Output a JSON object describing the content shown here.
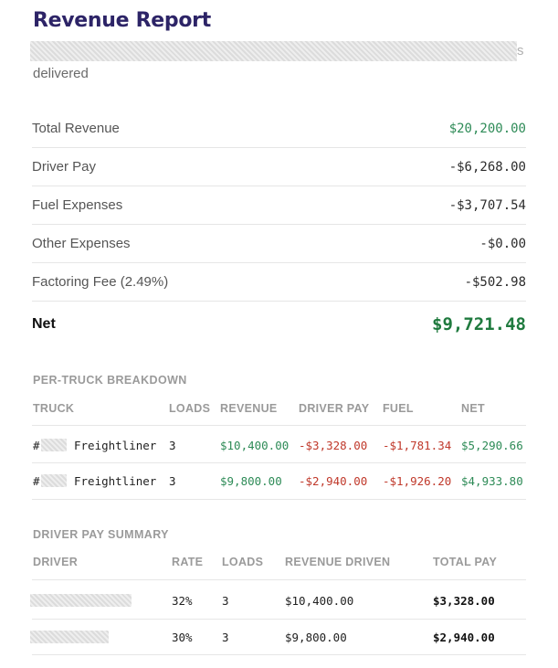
{
  "report": {
    "title": "Revenue Report",
    "subtitle_tail": "s",
    "subtitle_end": "delivered"
  },
  "summary": [
    {
      "label": "Total Revenue",
      "value": "$20,200.00"
    },
    {
      "label": "Driver Pay",
      "value": "-$6,268.00"
    },
    {
      "label": "Fuel Expenses",
      "value": "-$3,707.54"
    },
    {
      "label": "Other Expenses",
      "value": "-$0.00"
    },
    {
      "label": "Factoring Fee (2.49%)",
      "value": "-$502.98"
    }
  ],
  "net": {
    "label": "Net",
    "value": "$9,721.48"
  },
  "truck_breakdown": {
    "heading": "PER-TRUCK BREAKDOWN",
    "columns": [
      "TRUCK",
      "LOADS",
      "REVENUE",
      "DRIVER PAY",
      "FUEL",
      "NET"
    ],
    "rows": [
      {
        "prefix": "#",
        "model": "Freightliner",
        "loads": "3",
        "revenue": "$10,400.00",
        "driver_pay": "-$3,328.00",
        "fuel": "-$1,781.34",
        "net": "$5,290.66"
      },
      {
        "prefix": "#",
        "model": "Freightliner",
        "loads": "3",
        "revenue": "$9,800.00",
        "driver_pay": "-$2,940.00",
        "fuel": "-$1,926.20",
        "net": "$4,933.80"
      }
    ]
  },
  "driver_summary": {
    "heading": "DRIVER PAY SUMMARY",
    "columns": [
      "DRIVER",
      "RATE",
      "LOADS",
      "REVENUE DRIVEN",
      "TOTAL PAY"
    ],
    "rows": [
      {
        "rate": "32%",
        "loads": "3",
        "revenue_driven": "$10,400.00",
        "total_pay": "$3,328.00"
      },
      {
        "rate": "30%",
        "loads": "3",
        "revenue_driven": "$9,800.00",
        "total_pay": "$2,940.00"
      }
    ]
  },
  "colors": {
    "title": "#2d2467",
    "positive": "#2e8b57",
    "negative": "#c0392b",
    "net": "#1f7a3e"
  }
}
